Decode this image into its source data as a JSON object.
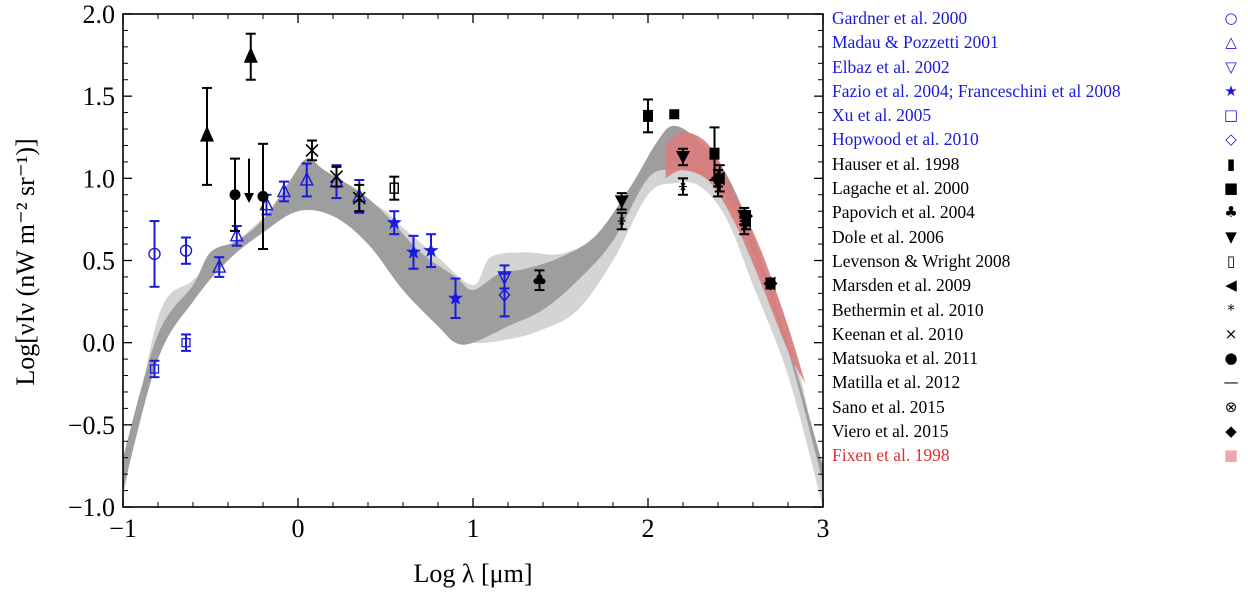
{
  "chart_data": {
    "type": "scatter",
    "xlabel": "Log λ [μm]",
    "ylabel": "Log[νIν (nW m⁻² sr⁻¹)]",
    "xlim": [
      -1,
      3
    ],
    "ylim": [
      -1,
      2
    ],
    "xticks": [
      "−1",
      "0",
      "1",
      "2",
      "3"
    ],
    "yticks": [
      "−1.0",
      "−0.5",
      "0.0",
      "0.5",
      "1.0",
      "1.5",
      "2.0"
    ],
    "legend_placement": "right",
    "bands": [
      {
        "id": "light",
        "upper": [
          [
            -1,
            -0.75
          ],
          [
            -0.8,
            0.0
          ],
          [
            -0.5,
            0.42
          ],
          [
            -0.3,
            0.66
          ],
          [
            -0.1,
            0.86
          ],
          [
            0.05,
            1.1
          ],
          [
            0.15,
            1.05
          ],
          [
            0.35,
            0.9
          ],
          [
            0.5,
            0.8
          ],
          [
            0.6,
            0.7
          ],
          [
            0.8,
            0.52
          ],
          [
            1.0,
            0.35
          ],
          [
            1.1,
            0.52
          ],
          [
            1.3,
            0.55
          ],
          [
            1.5,
            0.54
          ],
          [
            1.7,
            0.65
          ],
          [
            1.9,
            0.95
          ],
          [
            2.05,
            1.2
          ],
          [
            2.15,
            1.3
          ],
          [
            2.3,
            1.2
          ],
          [
            2.45,
            1.0
          ],
          [
            2.6,
            0.6
          ],
          [
            2.8,
            0.1
          ],
          [
            3,
            -0.85
          ]
        ],
        "lower": [
          [
            3,
            -1.0
          ],
          [
            2.8,
            -0.2
          ],
          [
            2.6,
            0.35
          ],
          [
            2.45,
            0.75
          ],
          [
            2.3,
            0.95
          ],
          [
            2.15,
            0.97
          ],
          [
            2.0,
            0.9
          ],
          [
            1.8,
            0.5
          ],
          [
            1.6,
            0.2
          ],
          [
            1.4,
            0.08
          ],
          [
            1.2,
            0.02
          ],
          [
            1.0,
            0.0
          ],
          [
            0.9,
            0.08
          ],
          [
            0.7,
            0.28
          ],
          [
            0.5,
            0.56
          ],
          [
            0.3,
            0.75
          ],
          [
            0.15,
            0.85
          ],
          [
            0.0,
            0.85
          ],
          [
            -0.2,
            0.7
          ],
          [
            -0.4,
            0.56
          ],
          [
            -0.6,
            0.38
          ],
          [
            -0.8,
            0.15
          ],
          [
            -1,
            -0.95
          ]
        ]
      },
      {
        "id": "dark",
        "upper": [
          [
            -1,
            -0.7
          ],
          [
            -0.8,
            0.05
          ],
          [
            -0.6,
            0.35
          ],
          [
            -0.5,
            0.55
          ],
          [
            -0.35,
            0.62
          ],
          [
            -0.2,
            0.75
          ],
          [
            -0.05,
            0.98
          ],
          [
            0.05,
            1.12
          ],
          [
            0.15,
            1.05
          ],
          [
            0.35,
            0.92
          ],
          [
            0.5,
            0.78
          ],
          [
            0.7,
            0.55
          ],
          [
            0.9,
            0.4
          ],
          [
            1.0,
            0.32
          ],
          [
            1.15,
            0.42
          ],
          [
            1.3,
            0.45
          ],
          [
            1.5,
            0.52
          ],
          [
            1.7,
            0.65
          ],
          [
            1.9,
            0.95
          ],
          [
            2.05,
            1.22
          ],
          [
            2.15,
            1.32
          ],
          [
            2.3,
            1.22
          ],
          [
            2.45,
            1.02
          ],
          [
            2.6,
            0.65
          ],
          [
            2.8,
            0.0
          ],
          [
            3,
            -0.75
          ]
        ],
        "lower": [
          [
            3,
            -0.85
          ],
          [
            2.8,
            -0.05
          ],
          [
            2.6,
            0.55
          ],
          [
            2.45,
            0.88
          ],
          [
            2.3,
            1.02
          ],
          [
            2.15,
            1.05
          ],
          [
            2.0,
            1.0
          ],
          [
            1.8,
            0.62
          ],
          [
            1.6,
            0.38
          ],
          [
            1.4,
            0.2
          ],
          [
            1.2,
            0.1
          ],
          [
            1.0,
            0.0
          ],
          [
            0.9,
            0.0
          ],
          [
            0.8,
            0.1
          ],
          [
            0.6,
            0.32
          ],
          [
            0.4,
            0.6
          ],
          [
            0.2,
            0.77
          ],
          [
            0.0,
            0.8
          ],
          [
            -0.2,
            0.67
          ],
          [
            -0.4,
            0.5
          ],
          [
            -0.6,
            0.25
          ],
          [
            -0.8,
            -0.1
          ],
          [
            -1,
            -0.9
          ]
        ]
      },
      {
        "id": "fixsen",
        "upper": [
          [
            2.1,
            1.2
          ],
          [
            2.2,
            1.28
          ],
          [
            2.35,
            1.2
          ],
          [
            2.5,
            0.9
          ],
          [
            2.65,
            0.55
          ],
          [
            2.8,
            0.1
          ],
          [
            2.9,
            -0.25
          ]
        ],
        "lower": [
          [
            2.9,
            -0.25
          ],
          [
            2.8,
            -0.05
          ],
          [
            2.65,
            0.35
          ],
          [
            2.5,
            0.72
          ],
          [
            2.35,
            0.98
          ],
          [
            2.2,
            1.05
          ],
          [
            2.1,
            1.0
          ]
        ]
      }
    ],
    "series": [
      {
        "name": "Gardner et al. 2000",
        "symbol": "circle-open",
        "color": "#1a1adb",
        "points": [
          [
            -0.82,
            0.54,
            0.2,
            0.2
          ],
          [
            -0.64,
            0.56,
            0.08,
            0.08
          ]
        ]
      },
      {
        "name": "Madau & Pozzetti 2001",
        "symbol": "triangle-open",
        "color": "#1a1adb",
        "points": [
          [
            -0.45,
            0.46,
            0.06,
            0.06
          ],
          [
            -0.35,
            0.65,
            0.06,
            0.06
          ],
          [
            -0.18,
            0.84,
            0.06,
            0.06
          ],
          [
            -0.08,
            0.92,
            0.06,
            0.06
          ],
          [
            0.05,
            0.99,
            0.1,
            0.1
          ],
          [
            0.22,
            0.98,
            0.1,
            0.1
          ],
          [
            0.35,
            0.89,
            0.1,
            0.1
          ]
        ]
      },
      {
        "name": "Elbaz et al. 2002",
        "symbol": "triangle-down-open",
        "color": "#1a1adb",
        "points": [
          [
            1.18,
            0.4,
            0.07,
            0.07
          ]
        ]
      },
      {
        "name": "Fazio et al. 2004; Franceschini et al 2008",
        "symbol": "star",
        "color": "#1a1adb",
        "points": [
          [
            0.55,
            0.73,
            0.07,
            0.07
          ],
          [
            0.66,
            0.55,
            0.1,
            0.1
          ],
          [
            0.76,
            0.56,
            0.1,
            0.1
          ],
          [
            0.9,
            0.27,
            0.12,
            0.12
          ]
        ]
      },
      {
        "name": "Xu et al. 2005",
        "symbol": "square-open",
        "color": "#1a1adb",
        "points": [
          [
            -0.82,
            -0.16,
            0.05,
            0.05
          ],
          [
            -0.64,
            0.0,
            0.05,
            0.05
          ]
        ]
      },
      {
        "name": "Hopwood et al. 2010",
        "symbol": "diamond-open",
        "color": "#1a1adb",
        "points": [
          [
            1.18,
            0.29,
            0.13,
            0.13
          ]
        ]
      },
      {
        "name": "Hauser et al. 1998",
        "symbol": "rect-tall",
        "color": "#000000",
        "points": [
          [
            2.0,
            1.38,
            0.1,
            0.1
          ],
          [
            2.38,
            1.15,
            0.16,
            0.16
          ]
        ]
      },
      {
        "name": "Lagache et al. 2000",
        "symbol": "square-filled",
        "color": "#000000",
        "points": [
          [
            2.15,
            1.39,
            0,
            0
          ]
        ]
      },
      {
        "name": "Papovich et al. 2004",
        "symbol": "club",
        "color": "#000000",
        "points": [
          [
            1.38,
            0.38,
            0.06,
            0.06
          ]
        ]
      },
      {
        "name": "Dole et al. 2006",
        "symbol": "triangle-down",
        "color": "#000000",
        "points": [
          [
            1.85,
            0.86,
            0.05,
            0.05
          ],
          [
            2.2,
            1.13,
            0.05,
            0.05
          ],
          [
            2.4,
            0.97,
            0.08,
            0.08
          ],
          [
            2.55,
            0.77,
            0.05,
            0.05
          ]
        ]
      },
      {
        "name": "Levenson & Wright 2008",
        "symbol": "rect-tall-open",
        "color": "#000000",
        "points": [
          [
            0.55,
            0.94,
            0.07,
            0.07
          ]
        ]
      },
      {
        "name": "Marsden et al. 2009",
        "symbol": "triangle-left",
        "color": "#000000",
        "points": [
          [
            2.41,
            1.0,
            0.08,
            0.08
          ],
          [
            2.56,
            0.74,
            0.05,
            0.05
          ],
          [
            2.7,
            0.36,
            0.03,
            0.03
          ]
        ]
      },
      {
        "name": "Bethermin et al. 2010",
        "symbol": "asterisk",
        "color": "#000000",
        "points": [
          [
            1.85,
            0.74,
            0.05,
            0.05
          ],
          [
            2.2,
            0.95,
            0.05,
            0.05
          ],
          [
            2.55,
            0.71,
            0.05,
            0.05
          ]
        ]
      },
      {
        "name": "Keenan et al. 2010",
        "symbol": "cross",
        "color": "#000000",
        "points": [
          [
            0.08,
            1.17,
            0.06,
            0.06
          ],
          [
            0.22,
            1.01,
            0.06,
            0.06
          ],
          [
            0.35,
            0.88,
            0.08,
            0.08
          ]
        ]
      },
      {
        "name": "Matsuoka et al. 2011",
        "symbol": "circle-filled",
        "color": "#000000",
        "points": [
          [
            -0.36,
            0.9,
            0.22,
            0.22
          ],
          [
            -0.2,
            0.89,
            0.32,
            0.32
          ]
        ]
      },
      {
        "name": "Matilla et al. 2012",
        "symbol": "dash",
        "color": "#000000",
        "points": []
      },
      {
        "name": "Sano et al. 2015",
        "symbol": "otimes",
        "color": "#000000",
        "points": []
      },
      {
        "name": "Viero et al. 2015",
        "symbol": "diamond-filled",
        "color": "#000000",
        "points": [
          [
            2.4,
            1.0,
            0.05,
            0.05
          ],
          [
            2.56,
            0.77,
            0.03,
            0.03
          ],
          [
            2.7,
            0.36,
            0.02,
            0.02
          ]
        ]
      },
      {
        "name": "Fixen et al. 1998",
        "symbol": "band-square",
        "color": "#f1a7a7",
        "points": []
      }
    ],
    "upper_limits": [
      {
        "x": -0.52,
        "y": 1.26,
        "err_plus": 0.29,
        "err_minus": 0.3,
        "symbol": "triangle-up-filled"
      },
      {
        "x": -0.27,
        "y": 1.74,
        "err_plus": 0.14,
        "err_minus": 0.14,
        "symbol": "triangle-up-filled"
      },
      {
        "x": -0.28,
        "y": 1.12,
        "arrow_to": 0.85,
        "symbol": "arrow-down"
      }
    ]
  },
  "legend": {
    "items": [
      {
        "label": "Gardner et al. 2000",
        "symbol_char": "○",
        "color": "#1a1adb"
      },
      {
        "label": "Madau & Pozzetti 2001",
        "symbol_char": "△",
        "color": "#1a1adb"
      },
      {
        "label": "Elbaz et al. 2002",
        "symbol_char": "▽",
        "color": "#1a1adb"
      },
      {
        "label": "Fazio et al. 2004; Franceschini et al 2008",
        "symbol_char": "★",
        "color": "#1a1adb"
      },
      {
        "label": "Xu et al. 2005",
        "symbol_char": "□",
        "color": "#1a1adb"
      },
      {
        "label": "Hopwood et al. 2010",
        "symbol_char": "◇",
        "color": "#1a1adb"
      },
      {
        "label": "Hauser et al. 1998",
        "symbol_char": "▮",
        "color": "#000000"
      },
      {
        "label": "Lagache et al. 2000",
        "symbol_char": "■",
        "color": "#000000"
      },
      {
        "label": "Papovich et al. 2004",
        "symbol_char": "♣",
        "color": "#000000"
      },
      {
        "label": "Dole et al. 2006",
        "symbol_char": "▼",
        "color": "#000000"
      },
      {
        "label": "Levenson & Wright 2008",
        "symbol_char": "▯",
        "color": "#000000"
      },
      {
        "label": "Marsden et al. 2009",
        "symbol_char": "◀",
        "color": "#000000"
      },
      {
        "label": "Bethermin et al. 2010",
        "symbol_char": "*",
        "color": "#000000"
      },
      {
        "label": "Keenan et al. 2010",
        "symbol_char": "×",
        "color": "#000000"
      },
      {
        "label": "Matsuoka et al. 2011",
        "symbol_char": "●",
        "color": "#000000"
      },
      {
        "label": "Matilla et al. 2012",
        "symbol_char": "—",
        "color": "#000000"
      },
      {
        "label": "Sano et al. 2015",
        "symbol_char": "⊗",
        "color": "#000000"
      },
      {
        "label": "Viero et al. 2015",
        "symbol_char": "◆",
        "color": "#000000"
      },
      {
        "label": "Fixen et al. 1998",
        "symbol_char": "■",
        "color": "#e03030",
        "symbol_color": "#f1a7a7"
      }
    ]
  },
  "colors": {
    "band_light": "#d4d4d4",
    "band_dark": "#9e9e9e",
    "band_fixsen": "#d97c7c",
    "blue": "#1a1adb",
    "black": "#000000"
  }
}
